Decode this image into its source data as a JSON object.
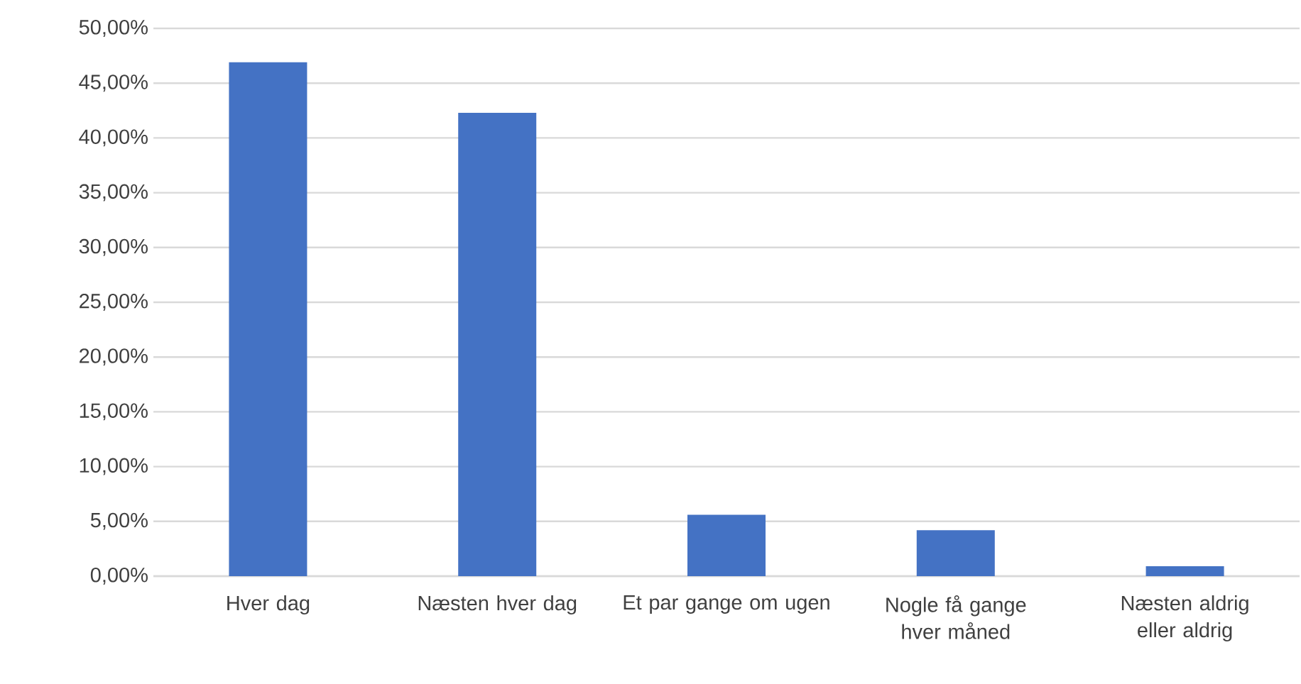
{
  "chart_data": {
    "type": "bar",
    "categories": [
      "Hver dag",
      "Næsten hver dag",
      "Et par gange om ugen",
      "Nogle få gange hver måned",
      "Næsten aldrig eller aldrig"
    ],
    "values": [
      46.9,
      42.3,
      5.6,
      4.2,
      0.9
    ],
    "color": "#4472c4",
    "ylim": [
      0,
      50
    ],
    "yticks": [
      {
        "value": 0,
        "label": "0,00%"
      },
      {
        "value": 5,
        "label": "5,00%"
      },
      {
        "value": 10,
        "label": "10,00%"
      },
      {
        "value": 15,
        "label": "15,00%"
      },
      {
        "value": 20,
        "label": "20,00%"
      },
      {
        "value": 25,
        "label": "25,00%"
      },
      {
        "value": 30,
        "label": "30,00%"
      },
      {
        "value": 35,
        "label": "35,00%"
      },
      {
        "value": 40,
        "label": "40,00%"
      },
      {
        "value": 45,
        "label": "45,00%"
      },
      {
        "value": 50,
        "label": "50,00%"
      }
    ],
    "grid": "y"
  }
}
